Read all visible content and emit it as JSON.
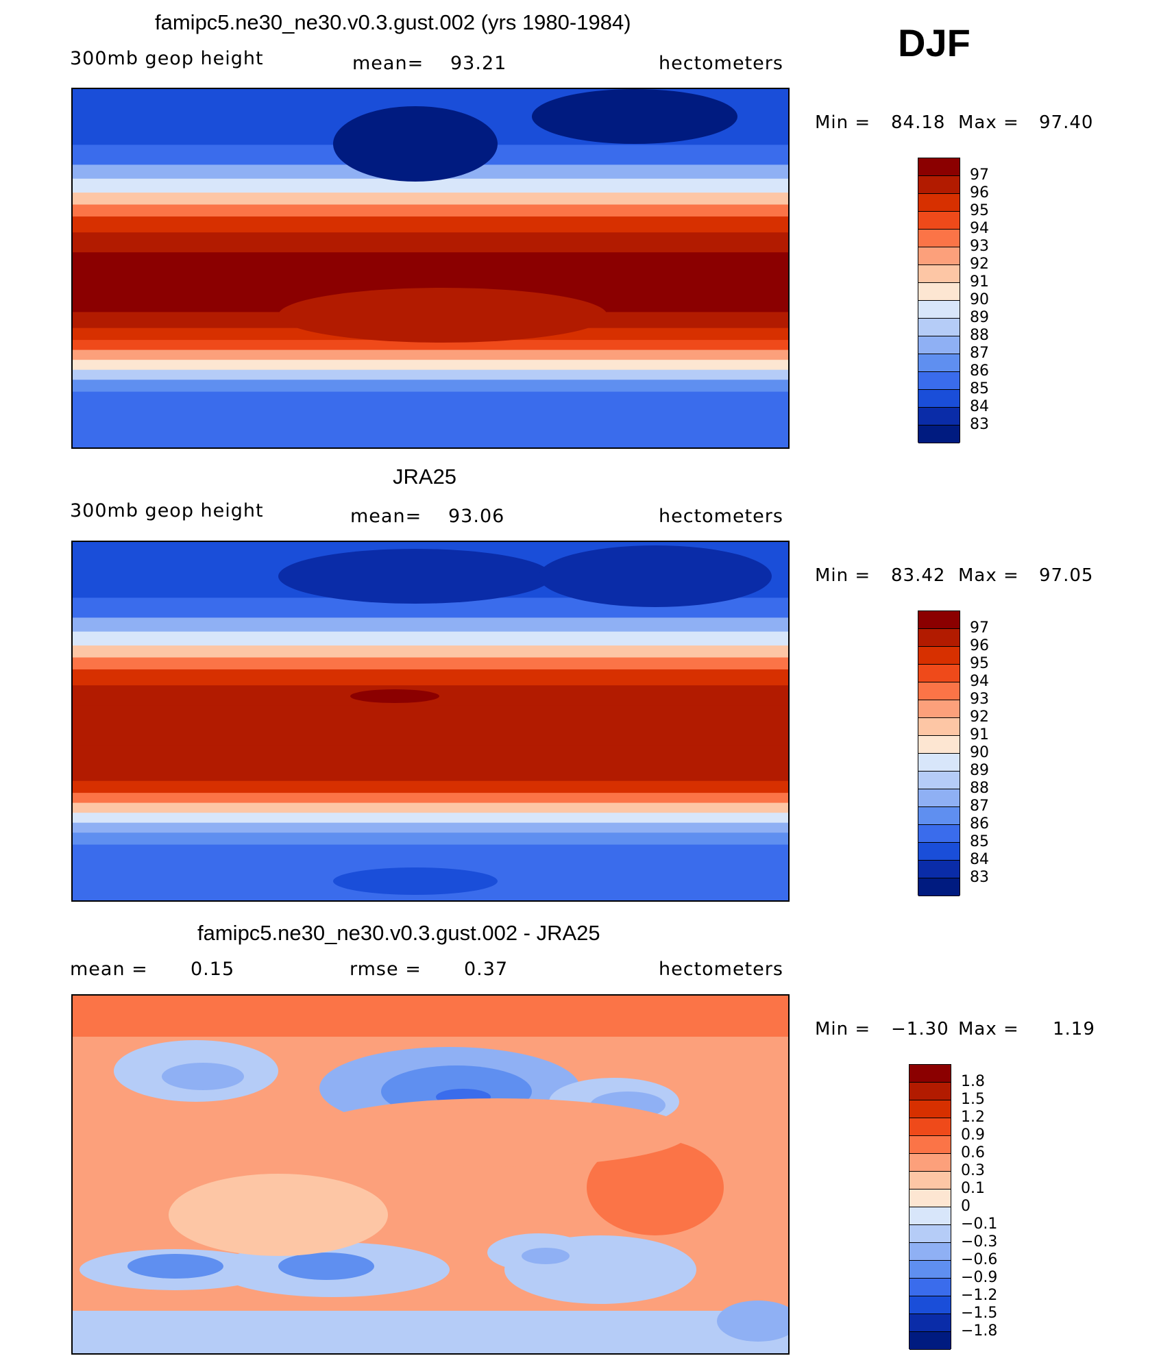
{
  "season": "DJF",
  "panels": [
    {
      "title": "famipc5.ne30_ne30.v0.3.gust.002 (yrs 1980-1984)",
      "left_label": "300mb  geop  height",
      "mean_label": "mean=",
      "mean_value": "93.21",
      "units": "hectometers",
      "min_label": "Min  =",
      "min_value": "84.18",
      "max_label": "Max  =",
      "max_value": "97.40",
      "legend": {
        "labels": [
          "97",
          "96",
          "95",
          "94",
          "93",
          "92",
          "91",
          "90",
          "89",
          "88",
          "87",
          "86",
          "85",
          "84",
          "83"
        ],
        "colors": [
          "#8b0000",
          "#b21b00",
          "#d73000",
          "#ef4a1a",
          "#fb7447",
          "#fca07b",
          "#fdc6a5",
          "#fde6d2",
          "#d8e6fa",
          "#b5ccf7",
          "#8fb0f4",
          "#5f8ff0",
          "#3a6cec",
          "#1a4ed9",
          "#0a2ca8",
          "#001b80"
        ]
      },
      "field": {
        "bands": [
          {
            "lat": 90,
            "level": 84
          },
          {
            "lat": 75,
            "level": 84
          },
          {
            "lat": 62,
            "level": 85
          },
          {
            "lat": 52,
            "level": 87
          },
          {
            "lat": 45,
            "level": 89
          },
          {
            "lat": 38,
            "level": 91
          },
          {
            "lat": 32,
            "level": 93
          },
          {
            "lat": 26,
            "level": 95
          },
          {
            "lat": 18,
            "level": 96
          },
          {
            "lat": 8,
            "level": 97
          },
          {
            "lat": -12,
            "level": 97
          },
          {
            "lat": -22,
            "level": 96
          },
          {
            "lat": -30,
            "level": 95
          },
          {
            "lat": -36,
            "level": 94
          },
          {
            "lat": -41,
            "level": 92
          },
          {
            "lat": -46,
            "level": 90
          },
          {
            "lat": -51,
            "level": 88
          },
          {
            "lat": -56,
            "level": 86
          },
          {
            "lat": -62,
            "level": 85
          },
          {
            "lat": -90,
            "level": 85
          }
        ]
      }
    },
    {
      "title": "JRA25",
      "left_label": "300mb  geop  height",
      "mean_label": "mean=",
      "mean_value": "93.06",
      "units": "hectometers",
      "min_label": "Min  =",
      "min_value": "83.42",
      "max_label": "Max  =",
      "max_value": "97.05",
      "legend": {
        "labels": [
          "97",
          "96",
          "95",
          "94",
          "93",
          "92",
          "91",
          "90",
          "89",
          "88",
          "87",
          "86",
          "85",
          "84",
          "83"
        ],
        "colors": [
          "#8b0000",
          "#b21b00",
          "#d73000",
          "#ef4a1a",
          "#fb7447",
          "#fca07b",
          "#fdc6a5",
          "#fde6d2",
          "#d8e6fa",
          "#b5ccf7",
          "#8fb0f4",
          "#5f8ff0",
          "#3a6cec",
          "#1a4ed9",
          "#0a2ca8",
          "#001b80"
        ]
      },
      "field": {
        "bands": [
          {
            "lat": 90,
            "level": 84
          },
          {
            "lat": 75,
            "level": 84
          },
          {
            "lat": 62,
            "level": 85
          },
          {
            "lat": 52,
            "level": 87
          },
          {
            "lat": 45,
            "level": 89
          },
          {
            "lat": 38,
            "level": 91
          },
          {
            "lat": 32,
            "level": 93
          },
          {
            "lat": 26,
            "level": 95
          },
          {
            "lat": 18,
            "level": 96
          },
          {
            "lat": 8,
            "level": 96
          },
          {
            "lat": -12,
            "level": 96
          },
          {
            "lat": -22,
            "level": 96
          },
          {
            "lat": -30,
            "level": 95
          },
          {
            "lat": -36,
            "level": 93
          },
          {
            "lat": -41,
            "level": 91
          },
          {
            "lat": -46,
            "level": 89
          },
          {
            "lat": -51,
            "level": 87
          },
          {
            "lat": -56,
            "level": 86
          },
          {
            "lat": -62,
            "level": 85
          },
          {
            "lat": -90,
            "level": 85
          }
        ]
      }
    },
    {
      "title": "famipc5.ne30_ne30.v0.3.gust.002 - JRA25",
      "left_label": "mean  =",
      "left_value": "0.15",
      "mean_label": "rmse  =",
      "mean_value": "0.37",
      "units": "hectometers",
      "min_label": "Min  =",
      "min_value": "−1.30",
      "max_label": "Max  =",
      "max_value": "1.19",
      "legend": {
        "labels": [
          "1.8",
          "1.5",
          "1.2",
          "0.9",
          "0.6",
          "0.3",
          "0.1",
          "0",
          "−0.1",
          "−0.3",
          "−0.6",
          "−0.9",
          "−1.2",
          "−1.5",
          "−1.8"
        ],
        "colors": [
          "#8b0000",
          "#b21b00",
          "#d73000",
          "#ef4a1a",
          "#fb7447",
          "#fca07b",
          "#fdc6a5",
          "#fde6d2",
          "#d8e6fa",
          "#b5ccf7",
          "#8fb0f4",
          "#5f8ff0",
          "#3a6cec",
          "#1a4ed9",
          "#0a2ca8",
          "#001b80"
        ]
      }
    }
  ]
}
